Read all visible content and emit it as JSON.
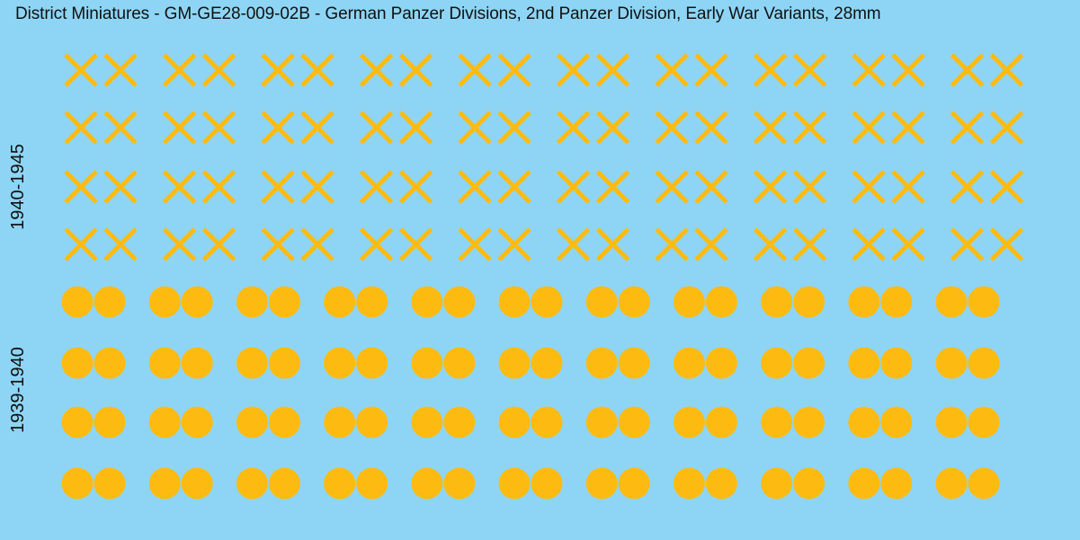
{
  "title": "District Miniatures - GM-GE28-009-02B - German Panzer Divisions, 2nd Panzer Division, Early War Variants, 28mm",
  "sections": [
    {
      "label": "1940-1945",
      "symbol": "double-x",
      "rows": 4,
      "pairs_per_row": 10
    },
    {
      "label": "1939-1940",
      "symbol": "double-dot",
      "rows": 4,
      "pairs_per_row": 11
    }
  ],
  "colors": {
    "background": "#8ed5f5",
    "decal": "#fdbb12",
    "text": "#111111"
  }
}
